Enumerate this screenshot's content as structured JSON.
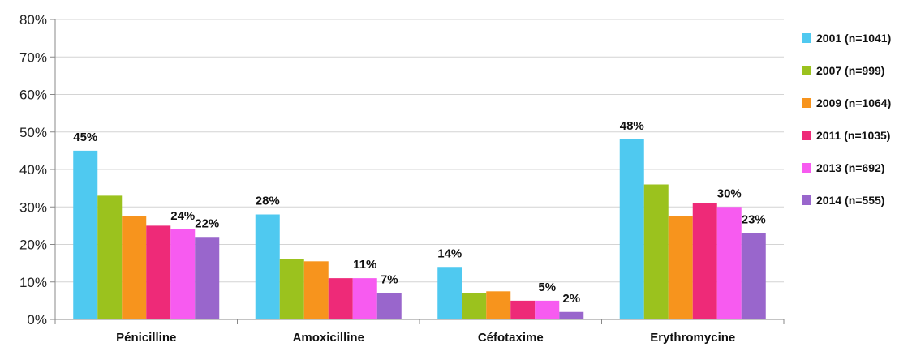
{
  "chart_data": {
    "type": "bar",
    "title": "",
    "xlabel": "",
    "ylabel": "",
    "ylim": [
      0,
      80
    ],
    "y_ticks": [
      "0%",
      "10%",
      "20%",
      "30%",
      "40%",
      "50%",
      "60%",
      "70%",
      "80%"
    ],
    "grid": true,
    "legend_position": "right",
    "categories": [
      "Pénicilline",
      "Amoxicilline",
      "Céfotaxime",
      "Erythromycine"
    ],
    "series": [
      {
        "name": "2001 (n=1041)",
        "color": "#4fc9f0",
        "values": [
          45,
          28,
          14,
          48
        ],
        "labels": [
          "45%",
          "28%",
          "14%",
          "48%"
        ]
      },
      {
        "name": "2007 (n=999)",
        "color": "#9bc21e",
        "values": [
          33,
          16,
          7,
          36
        ],
        "labels": [
          null,
          null,
          null,
          null
        ]
      },
      {
        "name": "2009 (n=1064)",
        "color": "#f7941d",
        "values": [
          27.5,
          15.5,
          7.5,
          27.5
        ],
        "labels": [
          null,
          null,
          null,
          null
        ]
      },
      {
        "name": "2011 (n=1035)",
        "color": "#ee2a78",
        "values": [
          25,
          11,
          5,
          31
        ],
        "labels": [
          null,
          null,
          null,
          null
        ]
      },
      {
        "name": "2013 (n=692)",
        "color": "#f75bf0",
        "values": [
          24,
          11,
          5,
          30
        ],
        "labels": [
          "24%",
          "11%",
          "5%",
          "30%"
        ]
      },
      {
        "name": "2014 (n=555)",
        "color": "#9966cc",
        "values": [
          22,
          7,
          2,
          23
        ],
        "labels": [
          "22%",
          "7%",
          "2%",
          "23%"
        ]
      }
    ]
  }
}
